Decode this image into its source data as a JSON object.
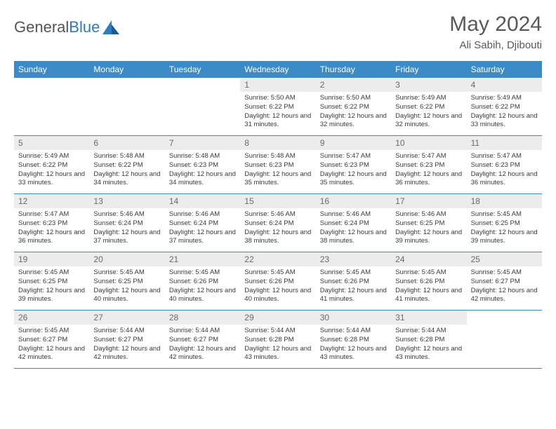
{
  "logo": {
    "text1": "General",
    "text2": "Blue"
  },
  "title": "May 2024",
  "location": "Ali Sabih, Djibouti",
  "colors": {
    "header_bg": "#3b8bc9",
    "header_text": "#ffffff",
    "daynum_bg": "#ececec",
    "daynum_text": "#6a6a6a",
    "body_text": "#3a3a3a",
    "title_text": "#595959",
    "rule": "#3b8bc9"
  },
  "weekdays": [
    "Sunday",
    "Monday",
    "Tuesday",
    "Wednesday",
    "Thursday",
    "Friday",
    "Saturday"
  ],
  "weeks": [
    [
      null,
      null,
      null,
      {
        "n": "1",
        "sr": "5:50 AM",
        "ss": "6:22 PM",
        "dl": "12 hours and 31 minutes."
      },
      {
        "n": "2",
        "sr": "5:50 AM",
        "ss": "6:22 PM",
        "dl": "12 hours and 32 minutes."
      },
      {
        "n": "3",
        "sr": "5:49 AM",
        "ss": "6:22 PM",
        "dl": "12 hours and 32 minutes."
      },
      {
        "n": "4",
        "sr": "5:49 AM",
        "ss": "6:22 PM",
        "dl": "12 hours and 33 minutes."
      }
    ],
    [
      {
        "n": "5",
        "sr": "5:49 AM",
        "ss": "6:22 PM",
        "dl": "12 hours and 33 minutes."
      },
      {
        "n": "6",
        "sr": "5:48 AM",
        "ss": "6:22 PM",
        "dl": "12 hours and 34 minutes."
      },
      {
        "n": "7",
        "sr": "5:48 AM",
        "ss": "6:23 PM",
        "dl": "12 hours and 34 minutes."
      },
      {
        "n": "8",
        "sr": "5:48 AM",
        "ss": "6:23 PM",
        "dl": "12 hours and 35 minutes."
      },
      {
        "n": "9",
        "sr": "5:47 AM",
        "ss": "6:23 PM",
        "dl": "12 hours and 35 minutes."
      },
      {
        "n": "10",
        "sr": "5:47 AM",
        "ss": "6:23 PM",
        "dl": "12 hours and 36 minutes."
      },
      {
        "n": "11",
        "sr": "5:47 AM",
        "ss": "6:23 PM",
        "dl": "12 hours and 36 minutes."
      }
    ],
    [
      {
        "n": "12",
        "sr": "5:47 AM",
        "ss": "6:23 PM",
        "dl": "12 hours and 36 minutes."
      },
      {
        "n": "13",
        "sr": "5:46 AM",
        "ss": "6:24 PM",
        "dl": "12 hours and 37 minutes."
      },
      {
        "n": "14",
        "sr": "5:46 AM",
        "ss": "6:24 PM",
        "dl": "12 hours and 37 minutes."
      },
      {
        "n": "15",
        "sr": "5:46 AM",
        "ss": "6:24 PM",
        "dl": "12 hours and 38 minutes."
      },
      {
        "n": "16",
        "sr": "5:46 AM",
        "ss": "6:24 PM",
        "dl": "12 hours and 38 minutes."
      },
      {
        "n": "17",
        "sr": "5:46 AM",
        "ss": "6:25 PM",
        "dl": "12 hours and 39 minutes."
      },
      {
        "n": "18",
        "sr": "5:45 AM",
        "ss": "6:25 PM",
        "dl": "12 hours and 39 minutes."
      }
    ],
    [
      {
        "n": "19",
        "sr": "5:45 AM",
        "ss": "6:25 PM",
        "dl": "12 hours and 39 minutes."
      },
      {
        "n": "20",
        "sr": "5:45 AM",
        "ss": "6:25 PM",
        "dl": "12 hours and 40 minutes."
      },
      {
        "n": "21",
        "sr": "5:45 AM",
        "ss": "6:26 PM",
        "dl": "12 hours and 40 minutes."
      },
      {
        "n": "22",
        "sr": "5:45 AM",
        "ss": "6:26 PM",
        "dl": "12 hours and 40 minutes."
      },
      {
        "n": "23",
        "sr": "5:45 AM",
        "ss": "6:26 PM",
        "dl": "12 hours and 41 minutes."
      },
      {
        "n": "24",
        "sr": "5:45 AM",
        "ss": "6:26 PM",
        "dl": "12 hours and 41 minutes."
      },
      {
        "n": "25",
        "sr": "5:45 AM",
        "ss": "6:27 PM",
        "dl": "12 hours and 42 minutes."
      }
    ],
    [
      {
        "n": "26",
        "sr": "5:45 AM",
        "ss": "6:27 PM",
        "dl": "12 hours and 42 minutes."
      },
      {
        "n": "27",
        "sr": "5:44 AM",
        "ss": "6:27 PM",
        "dl": "12 hours and 42 minutes."
      },
      {
        "n": "28",
        "sr": "5:44 AM",
        "ss": "6:27 PM",
        "dl": "12 hours and 42 minutes."
      },
      {
        "n": "29",
        "sr": "5:44 AM",
        "ss": "6:28 PM",
        "dl": "12 hours and 43 minutes."
      },
      {
        "n": "30",
        "sr": "5:44 AM",
        "ss": "6:28 PM",
        "dl": "12 hours and 43 minutes."
      },
      {
        "n": "31",
        "sr": "5:44 AM",
        "ss": "6:28 PM",
        "dl": "12 hours and 43 minutes."
      },
      null
    ]
  ],
  "labels": {
    "sunrise": "Sunrise:",
    "sunset": "Sunset:",
    "daylight": "Daylight:"
  }
}
